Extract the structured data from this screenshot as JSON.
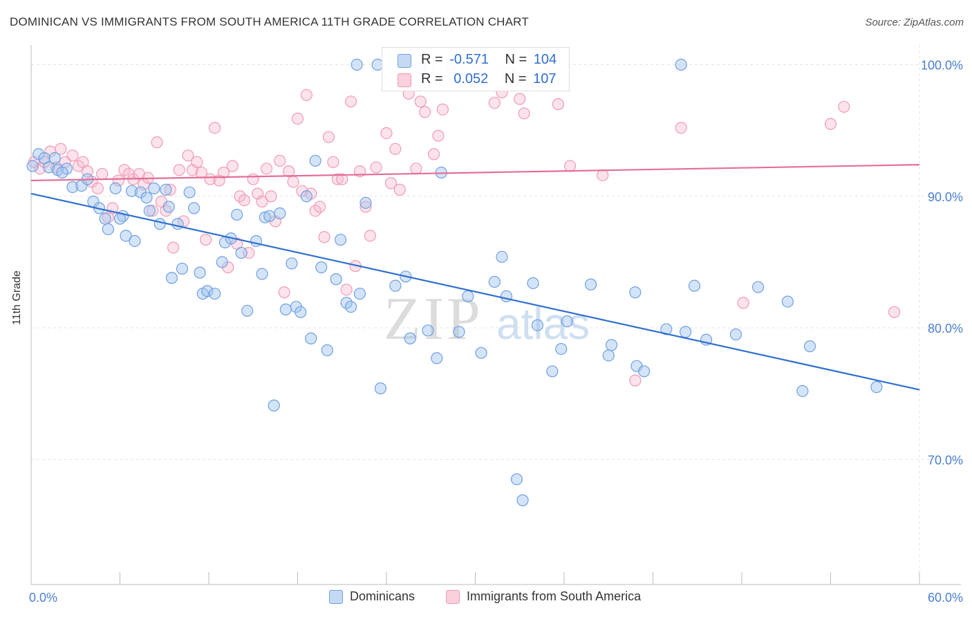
{
  "header": {
    "title": "DOMINICAN VS IMMIGRANTS FROM SOUTH AMERICA 11TH GRADE CORRELATION CHART",
    "source": "Source: ZipAtlas.com"
  },
  "watermark": {
    "zip": "ZIP",
    "atlas": "atlas"
  },
  "legend": {
    "r_label": "R =",
    "n_label": "N =",
    "series": [
      {
        "name": "Dominicans",
        "r": "-0.571",
        "n": "104",
        "color": "#6f9fe0",
        "fill": "#c5d9f4",
        "line": "#2f6fce"
      },
      {
        "name": "Immigrants from South America",
        "r": "0.052",
        "n": "107",
        "color": "#ef9ab5",
        "fill": "#f9d0dc",
        "line": "#e46d95"
      }
    ]
  },
  "chart_data": {
    "type": "scatter",
    "title": "DOMINICAN VS IMMIGRANTS FROM SOUTH AMERICA 11TH GRADE CORRELATION CHART",
    "xlabel": "",
    "ylabel": "11th Grade",
    "x_tick_labels": [
      "0.0%",
      "60.0%"
    ],
    "y_tick_labels": [
      "100.0%",
      "90.0%",
      "80.0%",
      "70.0%"
    ],
    "y_ticks": [
      100,
      90,
      80,
      70
    ],
    "xlim": [
      0,
      60
    ],
    "ylim": [
      60.5,
      101.5
    ],
    "grid": true,
    "series": [
      {
        "name": "Dominicans",
        "trend": [
          [
            0,
            90.2
          ],
          [
            60,
            75.3
          ]
        ],
        "points": [
          [
            0.1,
            92.3
          ],
          [
            0.5,
            93.2
          ],
          [
            0.9,
            92.9
          ],
          [
            1.2,
            92.2
          ],
          [
            1.8,
            92.0
          ],
          [
            2.4,
            92.1
          ],
          [
            2.8,
            90.7
          ],
          [
            3.4,
            90.8
          ],
          [
            3.8,
            91.3
          ],
          [
            4.2,
            89.6
          ],
          [
            4.6,
            89.1
          ],
          [
            5.0,
            88.3
          ],
          [
            5.2,
            87.5
          ],
          [
            5.7,
            90.6
          ],
          [
            6.2,
            88.5
          ],
          [
            6.4,
            87.0
          ],
          [
            6.8,
            90.4
          ],
          [
            7.0,
            86.6
          ],
          [
            7.4,
            90.3
          ],
          [
            7.8,
            89.9
          ],
          [
            8.0,
            88.9
          ],
          [
            8.3,
            90.6
          ],
          [
            8.7,
            87.9
          ],
          [
            9.1,
            90.5
          ],
          [
            9.3,
            89.2
          ],
          [
            9.5,
            83.8
          ],
          [
            9.9,
            87.9
          ],
          [
            10.2,
            84.5
          ],
          [
            10.7,
            90.3
          ],
          [
            11.0,
            89.1
          ],
          [
            11.4,
            84.2
          ],
          [
            11.6,
            82.6
          ],
          [
            11.9,
            82.8
          ],
          [
            12.4,
            82.6
          ],
          [
            12.9,
            85.0
          ],
          [
            13.1,
            86.5
          ],
          [
            13.5,
            86.8
          ],
          [
            13.9,
            88.6
          ],
          [
            14.2,
            85.7
          ],
          [
            14.6,
            81.3
          ],
          [
            15.2,
            86.6
          ],
          [
            15.6,
            84.1
          ],
          [
            15.8,
            88.4
          ],
          [
            16.1,
            88.5
          ],
          [
            16.4,
            74.1
          ],
          [
            16.8,
            88.7
          ],
          [
            17.2,
            81.4
          ],
          [
            17.6,
            84.9
          ],
          [
            17.9,
            81.6
          ],
          [
            18.2,
            81.2
          ],
          [
            18.6,
            90.0
          ],
          [
            18.9,
            79.2
          ],
          [
            19.2,
            92.7
          ],
          [
            19.6,
            84.6
          ],
          [
            20.0,
            78.3
          ],
          [
            20.6,
            83.7
          ],
          [
            20.9,
            86.7
          ],
          [
            21.3,
            81.9
          ],
          [
            21.6,
            81.6
          ],
          [
            22.2,
            82.6
          ],
          [
            22.6,
            89.5
          ],
          [
            22.0,
            100.0
          ],
          [
            23.6,
            75.4
          ],
          [
            23.4,
            100.0
          ],
          [
            24.6,
            83.2
          ],
          [
            25.3,
            83.9
          ],
          [
            25.6,
            79.2
          ],
          [
            26.3,
            99.7
          ],
          [
            26.8,
            79.8
          ],
          [
            27.4,
            77.7
          ],
          [
            27.7,
            91.8
          ],
          [
            28.9,
            79.7
          ],
          [
            29.5,
            82.4
          ],
          [
            30.4,
            78.1
          ],
          [
            31.3,
            83.5
          ],
          [
            31.8,
            85.4
          ],
          [
            32.1,
            82.4
          ],
          [
            32.8,
            68.5
          ],
          [
            33.2,
            66.9
          ],
          [
            33.9,
            83.4
          ],
          [
            34.2,
            80.2
          ],
          [
            35.2,
            76.7
          ],
          [
            35.8,
            78.4
          ],
          [
            36.2,
            80.5
          ],
          [
            37.8,
            83.3
          ],
          [
            39.0,
            77.9
          ],
          [
            39.2,
            78.7
          ],
          [
            40.8,
            82.7
          ],
          [
            40.9,
            77.1
          ],
          [
            41.4,
            76.7
          ],
          [
            42.9,
            79.9
          ],
          [
            43.9,
            100.0
          ],
          [
            44.2,
            79.7
          ],
          [
            44.8,
            83.2
          ],
          [
            45.6,
            79.1
          ],
          [
            47.6,
            79.5
          ],
          [
            49.1,
            83.1
          ],
          [
            51.1,
            82.0
          ],
          [
            52.1,
            75.2
          ],
          [
            52.6,
            78.6
          ],
          [
            57.1,
            75.5
          ],
          [
            1.6,
            92.9
          ],
          [
            2.1,
            91.8
          ],
          [
            6.0,
            88.3
          ]
        ]
      },
      {
        "name": "Immigrants from South America",
        "trend": [
          [
            0,
            91.2
          ],
          [
            60,
            92.4
          ]
        ],
        "points": [
          [
            0.2,
            92.6
          ],
          [
            0.6,
            92.1
          ],
          [
            0.9,
            92.6
          ],
          [
            1.3,
            93.4
          ],
          [
            1.7,
            92.2
          ],
          [
            2.0,
            93.6
          ],
          [
            2.3,
            92.6
          ],
          [
            2.8,
            93.1
          ],
          [
            3.2,
            92.3
          ],
          [
            3.5,
            92.6
          ],
          [
            3.8,
            91.9
          ],
          [
            4.1,
            91.1
          ],
          [
            4.5,
            90.6
          ],
          [
            4.8,
            91.7
          ],
          [
            5.2,
            88.4
          ],
          [
            5.5,
            89.1
          ],
          [
            5.9,
            91.2
          ],
          [
            6.3,
            92.0
          ],
          [
            6.6,
            91.7
          ],
          [
            6.9,
            91.3
          ],
          [
            7.3,
            91.7
          ],
          [
            7.6,
            90.9
          ],
          [
            7.9,
            91.4
          ],
          [
            8.2,
            88.9
          ],
          [
            8.5,
            94.1
          ],
          [
            8.8,
            89.6
          ],
          [
            9.1,
            88.9
          ],
          [
            9.4,
            90.5
          ],
          [
            9.6,
            86.1
          ],
          [
            10.0,
            92.0
          ],
          [
            10.3,
            88.1
          ],
          [
            10.6,
            93.1
          ],
          [
            10.9,
            92.0
          ],
          [
            11.2,
            92.6
          ],
          [
            11.5,
            91.8
          ],
          [
            11.8,
            86.7
          ],
          [
            12.1,
            91.3
          ],
          [
            12.4,
            95.2
          ],
          [
            12.7,
            91.2
          ],
          [
            13.0,
            91.8
          ],
          [
            13.3,
            84.6
          ],
          [
            13.6,
            92.3
          ],
          [
            13.9,
            86.4
          ],
          [
            14.1,
            90.0
          ],
          [
            14.4,
            89.7
          ],
          [
            14.7,
            85.7
          ],
          [
            15.0,
            91.3
          ],
          [
            15.3,
            90.2
          ],
          [
            15.6,
            89.6
          ],
          [
            15.9,
            92.1
          ],
          [
            16.2,
            90.0
          ],
          [
            16.5,
            88.1
          ],
          [
            16.8,
            92.7
          ],
          [
            17.1,
            82.7
          ],
          [
            17.4,
            91.9
          ],
          [
            17.7,
            91.1
          ],
          [
            18.0,
            95.9
          ],
          [
            18.3,
            90.4
          ],
          [
            18.6,
            97.7
          ],
          [
            18.9,
            90.2
          ],
          [
            19.2,
            88.9
          ],
          [
            19.5,
            89.2
          ],
          [
            19.8,
            86.9
          ],
          [
            20.1,
            94.5
          ],
          [
            20.4,
            92.6
          ],
          [
            20.7,
            91.3
          ],
          [
            21.0,
            91.3
          ],
          [
            21.3,
            82.9
          ],
          [
            21.6,
            97.2
          ],
          [
            21.9,
            84.7
          ],
          [
            22.2,
            91.9
          ],
          [
            22.6,
            89.2
          ],
          [
            22.9,
            87.0
          ],
          [
            23.3,
            92.2
          ],
          [
            24.0,
            94.8
          ],
          [
            24.3,
            91.0
          ],
          [
            24.6,
            93.6
          ],
          [
            24.9,
            90.5
          ],
          [
            25.2,
            98.6
          ],
          [
            25.5,
            97.8
          ],
          [
            26.0,
            92.1
          ],
          [
            26.3,
            97.2
          ],
          [
            26.6,
            96.4
          ],
          [
            26.9,
            99.8
          ],
          [
            27.2,
            93.2
          ],
          [
            27.5,
            94.6
          ],
          [
            27.8,
            96.6
          ],
          [
            28.4,
            100.0
          ],
          [
            29.5,
            98.9
          ],
          [
            30.2,
            99.9
          ],
          [
            31.3,
            97.1
          ],
          [
            31.8,
            97.9
          ],
          [
            32.2,
            99.4
          ],
          [
            32.6,
            99.1
          ],
          [
            33.0,
            97.4
          ],
          [
            33.3,
            96.3
          ],
          [
            34.2,
            98.5
          ],
          [
            35.0,
            99.9
          ],
          [
            35.6,
            97.0
          ],
          [
            36.4,
            92.3
          ],
          [
            38.6,
            91.6
          ],
          [
            40.8,
            76.0
          ],
          [
            43.9,
            95.2
          ],
          [
            48.1,
            81.9
          ],
          [
            54.0,
            95.5
          ],
          [
            54.9,
            96.8
          ],
          [
            58.3,
            81.2
          ]
        ]
      }
    ]
  }
}
